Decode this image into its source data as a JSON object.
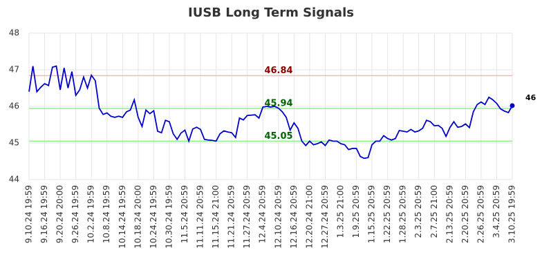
{
  "chart_data": {
    "type": "line",
    "title": "IUSB Long Term Signals",
    "categories": [
      "9.10.24 19:59",
      null,
      null,
      null,
      "9.16.24 19:59",
      null,
      null,
      null,
      "9.20.24 20:00",
      null,
      null,
      null,
      "9.26.24 19:59",
      null,
      null,
      null,
      "10.2.24 19:59",
      null,
      null,
      null,
      "10.8.24 19:59",
      null,
      null,
      null,
      "10.14.24 19:59",
      null,
      null,
      null,
      "10.18.24 20:00",
      null,
      null,
      null,
      "10.24.24 19:59",
      null,
      null,
      null,
      "10.30.24 19:59",
      null,
      null,
      null,
      "11.5.24 20:59",
      null,
      null,
      null,
      "11.11.24 20:59",
      null,
      null,
      null,
      "11.15.24 21:00",
      null,
      null,
      null,
      "11.21.24 20:59",
      null,
      null,
      null,
      "11.27.24 20:59",
      null,
      null,
      null,
      "12.4.24 20:59",
      null,
      null,
      null,
      "12.10.24 20:59",
      null,
      null,
      null,
      "12.16.24 20:59",
      null,
      null,
      null,
      "12.20.24 21:00",
      null,
      null,
      null,
      "12.27.24 20:59",
      null,
      null,
      null,
      "1.3.25 21:00",
      null,
      null,
      null,
      "1.9.25 20:59",
      null,
      null,
      null,
      "1.15.25 20:59",
      null,
      null,
      null,
      "1.22.25 20:59",
      null,
      null,
      null,
      "1.28.25 20:59",
      null,
      null,
      null,
      "2.3.25 20:59",
      null,
      null,
      null,
      "2.7.25 21:00",
      null,
      null,
      null,
      "2.13.25 20:59",
      null,
      null,
      null,
      "2.20.25 20:59",
      null,
      null,
      null,
      "2.26.25 20:59",
      null,
      null,
      null,
      "3.4.25 20:59",
      null,
      null,
      null,
      "3.10.25 19:59"
    ],
    "values": [
      46.4,
      47.1,
      46.4,
      46.52,
      46.62,
      46.57,
      47.07,
      47.1,
      46.45,
      47.05,
      46.5,
      46.95,
      46.3,
      46.45,
      46.8,
      46.5,
      46.85,
      46.7,
      45.95,
      45.78,
      45.82,
      45.73,
      45.7,
      45.73,
      45.7,
      45.85,
      45.9,
      46.18,
      45.7,
      45.45,
      45.9,
      45.8,
      45.88,
      45.32,
      45.28,
      45.62,
      45.58,
      45.25,
      45.1,
      45.27,
      45.35,
      45.05,
      45.38,
      45.43,
      45.37,
      45.1,
      45.08,
      45.07,
      45.05,
      45.25,
      45.33,
      45.3,
      45.28,
      45.15,
      45.68,
      45.63,
      45.75,
      45.76,
      45.77,
      45.68,
      45.98,
      46.0,
      45.98,
      46.0,
      45.95,
      45.85,
      45.7,
      45.35,
      45.55,
      45.4,
      45.05,
      44.93,
      45.05,
      44.95,
      44.98,
      45.03,
      44.93,
      45.08,
      45.05,
      45.05,
      44.98,
      44.95,
      44.82,
      44.85,
      44.85,
      44.63,
      44.58,
      44.6,
      44.95,
      45.05,
      45.05,
      45.2,
      45.12,
      45.08,
      45.12,
      45.34,
      45.32,
      45.3,
      45.37,
      45.3,
      45.33,
      45.4,
      45.62,
      45.58,
      45.47,
      45.48,
      45.4,
      45.18,
      45.42,
      45.58,
      45.43,
      45.45,
      45.52,
      45.42,
      45.85,
      46.05,
      46.12,
      46.05,
      46.25,
      46.18,
      46.08,
      45.93,
      45.87,
      45.83,
      46.02
    ],
    "color": "#0000cc",
    "last_value_label": "46",
    "hlines": [
      {
        "value": 46.84,
        "color": "#ffb3b3",
        "text_color": "#8b0000"
      },
      {
        "value": 45.94,
        "color": "#90ee90",
        "text_color": "#006400"
      },
      {
        "value": 45.05,
        "color": "#90ee90",
        "text_color": "#006400"
      }
    ],
    "ylim": [
      44,
      48
    ],
    "yticks": [
      44,
      45,
      46,
      47,
      48
    ],
    "grid": true
  }
}
